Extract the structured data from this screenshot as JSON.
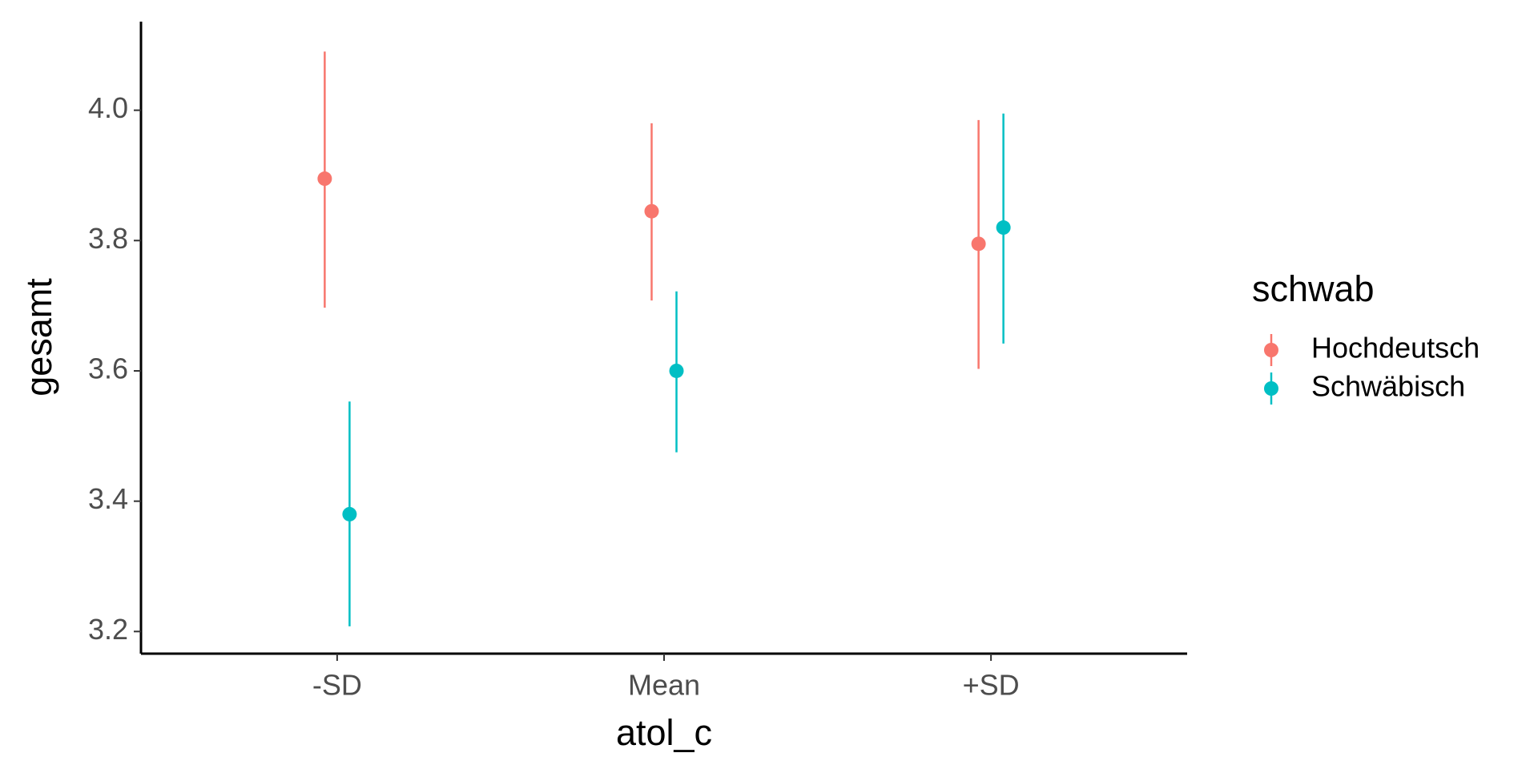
{
  "chart_data": {
    "type": "errorbar",
    "x_label": "atol_c",
    "y_label": "gesamt",
    "legend_title": "schwab",
    "categories": [
      "-SD",
      "Mean",
      "+SD"
    ],
    "series": [
      {
        "name": "Hochdeutsch",
        "color": "#F8766D",
        "values": [
          3.895,
          3.845,
          3.795
        ],
        "lower": [
          3.697,
          3.708,
          3.603
        ],
        "upper": [
          4.09,
          3.98,
          3.985
        ]
      },
      {
        "name": "Schwäbisch",
        "color": "#00BFC4",
        "values": [
          3.38,
          3.6,
          3.82
        ],
        "lower": [
          3.208,
          3.475,
          3.642
        ],
        "upper": [
          3.553,
          3.722,
          3.995
        ]
      }
    ],
    "ylim": [
      3.166,
      4.136
    ],
    "yticks": [
      {
        "value": 3.2,
        "label": "3.2"
      },
      {
        "value": 3.4,
        "label": "3.4"
      },
      {
        "value": 3.6,
        "label": "3.6"
      },
      {
        "value": 3.8,
        "label": "3.8"
      },
      {
        "value": 4.0,
        "label": "4.0"
      }
    ],
    "legend_position": "right"
  }
}
